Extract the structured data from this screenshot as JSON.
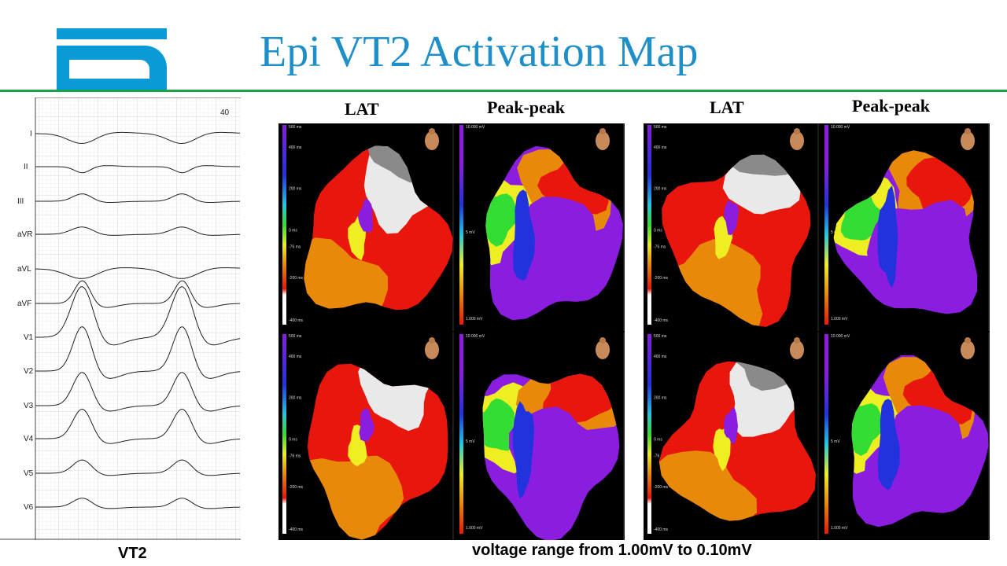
{
  "slide": {
    "title": "Epi VT2 Activation Map",
    "ecg_caption": "VT2",
    "footer_note": "voltage range from 1.00mV to 0.10mV"
  },
  "ecg": {
    "page_number": "40",
    "leads": [
      "I",
      "II",
      "III",
      "aVR",
      "aVL",
      "aVF",
      "V1",
      "V2",
      "V3",
      "V4",
      "V5",
      "V6"
    ]
  },
  "maps": {
    "headers": [
      "LAT",
      "Peak-peak",
      "LAT",
      "Peak-peak"
    ],
    "lat_scale": {
      "top": "500 ms",
      "upper": "400 ms",
      "mid_high": "200 ms",
      "mid": "0 ms",
      "mid_low": "-76 ms",
      "lower": "-200 ms",
      "bottom": "-400 ms"
    },
    "pp_scale": {
      "top": "10.000 mV",
      "mid": "5 mV",
      "bottom": "1.000 mV"
    }
  },
  "colors": {
    "title": "#1e8fc8",
    "divider": "#16a34a",
    "logo": "#0a9ad6",
    "map_red": "#e8160c",
    "map_orange": "#e8890a",
    "map_purple": "#8a1de0",
    "map_gray": "#8a8a8a",
    "map_white": "#e9e9e9"
  }
}
